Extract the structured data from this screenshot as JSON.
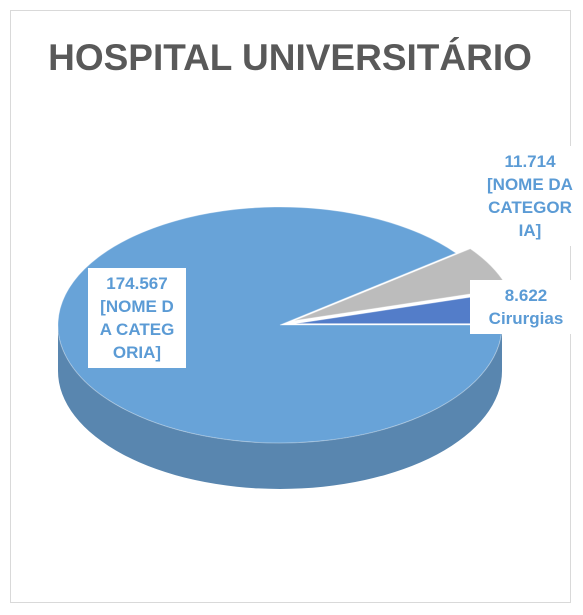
{
  "chart_data": {
    "type": "pie",
    "title": "HOSPITAL UNIVERSITÁRIO",
    "categories": [
      "[NOME DA CATEGORIA]",
      "[NOME DA CATEGORIA]",
      "Cirurgias"
    ],
    "values": [
      174567,
      11714,
      8622
    ],
    "value_labels": [
      "174.567",
      "11.714",
      "8.622"
    ],
    "colors": [
      "#5b9bd5",
      "#a5a5a5",
      "#4472c4"
    ]
  }
}
